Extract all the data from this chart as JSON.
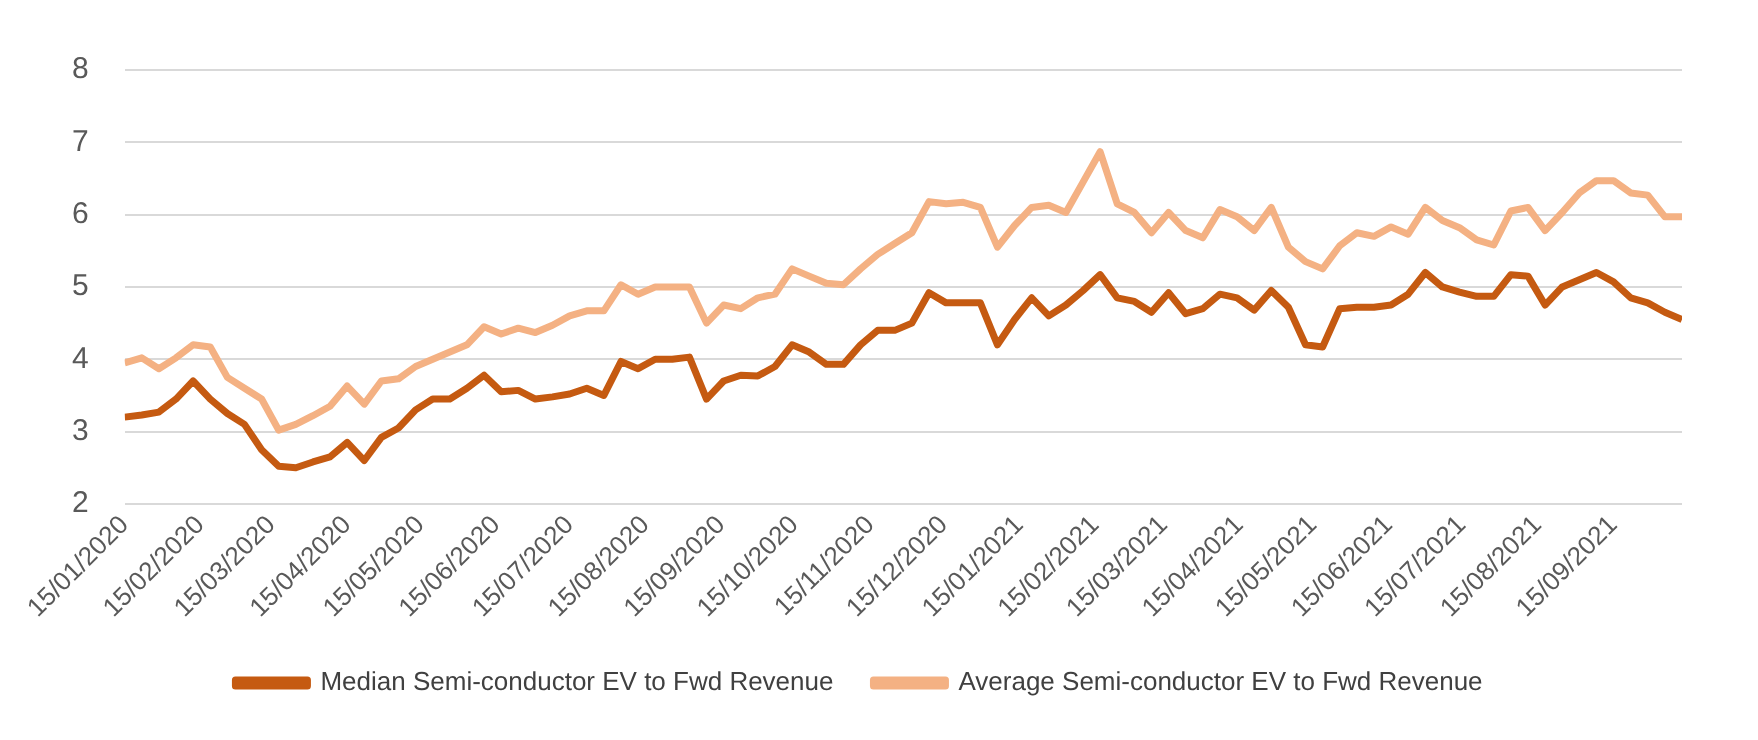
{
  "chart_data": {
    "type": "line",
    "x": [
      "2020-01-15",
      "2020-01-22",
      "2020-01-29",
      "2020-02-05",
      "2020-02-12",
      "2020-02-19",
      "2020-02-26",
      "2020-03-04",
      "2020-03-11",
      "2020-03-18",
      "2020-03-25",
      "2020-04-01",
      "2020-04-08",
      "2020-04-15",
      "2020-04-22",
      "2020-04-29",
      "2020-05-06",
      "2020-05-13",
      "2020-05-20",
      "2020-05-27",
      "2020-06-03",
      "2020-06-10",
      "2020-06-17",
      "2020-06-24",
      "2020-07-01",
      "2020-07-08",
      "2020-07-15",
      "2020-07-22",
      "2020-07-29",
      "2020-08-05",
      "2020-08-12",
      "2020-08-19",
      "2020-08-26",
      "2020-09-02",
      "2020-09-09",
      "2020-09-16",
      "2020-09-23",
      "2020-09-30",
      "2020-10-07",
      "2020-10-14",
      "2020-10-21",
      "2020-10-28",
      "2020-11-04",
      "2020-11-11",
      "2020-11-18",
      "2020-11-25",
      "2020-12-02",
      "2020-12-09",
      "2020-12-16",
      "2020-12-23",
      "2020-12-30",
      "2021-01-06",
      "2021-01-13",
      "2021-01-20",
      "2021-01-27",
      "2021-02-03",
      "2021-02-10",
      "2021-02-17",
      "2021-02-24",
      "2021-03-03",
      "2021-03-10",
      "2021-03-17",
      "2021-03-24",
      "2021-03-31",
      "2021-04-07",
      "2021-04-14",
      "2021-04-21",
      "2021-04-28",
      "2021-05-05",
      "2021-05-12",
      "2021-05-19",
      "2021-05-26",
      "2021-06-02",
      "2021-06-09",
      "2021-06-16",
      "2021-06-23",
      "2021-06-30",
      "2021-07-07",
      "2021-07-14",
      "2021-07-21",
      "2021-07-28",
      "2021-08-04",
      "2021-08-11",
      "2021-08-18",
      "2021-08-25",
      "2021-09-01",
      "2021-09-08",
      "2021-09-15",
      "2021-09-22",
      "2021-09-29",
      "2021-10-06",
      "2021-10-13"
    ],
    "series": [
      {
        "name": "Median Semi-conductor EV to Fwd Revenue",
        "color": "#c55a11",
        "values": [
          3.2,
          3.23,
          3.27,
          3.45,
          3.7,
          3.45,
          3.25,
          3.1,
          2.75,
          2.52,
          2.5,
          2.58,
          2.65,
          2.85,
          2.6,
          2.92,
          3.05,
          3.3,
          3.45,
          3.45,
          3.6,
          3.78,
          3.55,
          3.57,
          3.45,
          3.48,
          3.52,
          3.6,
          3.5,
          3.97,
          3.87,
          4.0,
          4.0,
          4.03,
          3.45,
          3.7,
          3.78,
          3.77,
          3.9,
          4.2,
          4.1,
          3.93,
          3.93,
          4.2,
          4.4,
          4.4,
          4.5,
          4.92,
          4.78,
          4.78,
          4.78,
          4.2,
          4.55,
          4.85,
          4.6,
          4.75,
          4.95,
          5.17,
          4.85,
          4.8,
          4.65,
          4.92,
          4.63,
          4.7,
          4.9,
          4.85,
          4.68,
          4.95,
          4.72,
          4.2,
          4.17,
          4.7,
          4.72,
          4.72,
          4.75,
          4.9,
          5.2,
          5.0,
          4.93,
          4.87,
          4.87,
          5.17,
          5.15,
          4.75,
          5.0,
          5.1,
          5.2,
          5.07,
          4.85,
          4.78,
          4.65,
          4.55
        ]
      },
      {
        "name": "Average Semi-conductor EV to Fwd Revenue",
        "color": "#f4b183",
        "values": [
          3.95,
          4.02,
          3.87,
          4.02,
          4.2,
          4.17,
          3.75,
          3.6,
          3.45,
          3.02,
          3.1,
          3.22,
          3.35,
          3.63,
          3.38,
          3.7,
          3.73,
          3.9,
          4.0,
          4.1,
          4.2,
          4.45,
          4.35,
          4.43,
          4.37,
          4.47,
          4.6,
          4.67,
          4.67,
          5.03,
          4.9,
          5.0,
          5.0,
          5.0,
          4.5,
          4.75,
          4.7,
          4.85,
          4.9,
          5.25,
          5.15,
          5.05,
          5.03,
          5.25,
          5.45,
          5.6,
          5.75,
          6.18,
          6.15,
          6.17,
          6.1,
          5.55,
          5.85,
          6.1,
          6.13,
          6.03,
          6.45,
          6.87,
          6.15,
          6.03,
          5.75,
          6.03,
          5.78,
          5.68,
          6.07,
          5.97,
          5.78,
          6.1,
          5.55,
          5.35,
          5.25,
          5.57,
          5.75,
          5.7,
          5.83,
          5.73,
          6.1,
          5.92,
          5.82,
          5.65,
          5.58,
          6.05,
          6.1,
          5.78,
          6.03,
          6.3,
          6.47,
          6.47,
          6.3,
          6.27,
          5.97,
          5.97
        ]
      }
    ],
    "xlim": [
      "2020-01-15",
      "2021-10-13"
    ],
    "xticks": [
      {
        "value": "2020-01-15",
        "label": "15/01/2020"
      },
      {
        "value": "2020-02-15",
        "label": "15/02/2020"
      },
      {
        "value": "2020-03-15",
        "label": "15/03/2020"
      },
      {
        "value": "2020-04-15",
        "label": "15/04/2020"
      },
      {
        "value": "2020-05-15",
        "label": "15/05/2020"
      },
      {
        "value": "2020-06-15",
        "label": "15/06/2020"
      },
      {
        "value": "2020-07-15",
        "label": "15/07/2020"
      },
      {
        "value": "2020-08-15",
        "label": "15/08/2020"
      },
      {
        "value": "2020-09-15",
        "label": "15/09/2020"
      },
      {
        "value": "2020-10-15",
        "label": "15/10/2020"
      },
      {
        "value": "2020-11-15",
        "label": "15/11/2020"
      },
      {
        "value": "2020-12-15",
        "label": "15/12/2020"
      },
      {
        "value": "2021-01-15",
        "label": "15/01/2021"
      },
      {
        "value": "2021-02-15",
        "label": "15/02/2021"
      },
      {
        "value": "2021-03-15",
        "label": "15/03/2021"
      },
      {
        "value": "2021-04-15",
        "label": "15/04/2021"
      },
      {
        "value": "2021-05-15",
        "label": "15/05/2021"
      },
      {
        "value": "2021-06-15",
        "label": "15/06/2021"
      },
      {
        "value": "2021-07-15",
        "label": "15/07/2021"
      },
      {
        "value": "2021-08-15",
        "label": "15/08/2021"
      },
      {
        "value": "2021-09-15",
        "label": "15/09/2021"
      }
    ],
    "ylim": [
      2,
      8
    ],
    "yticks": [
      2,
      3,
      4,
      5,
      6,
      7,
      8
    ],
    "grid": "y",
    "legend": "bottom"
  }
}
